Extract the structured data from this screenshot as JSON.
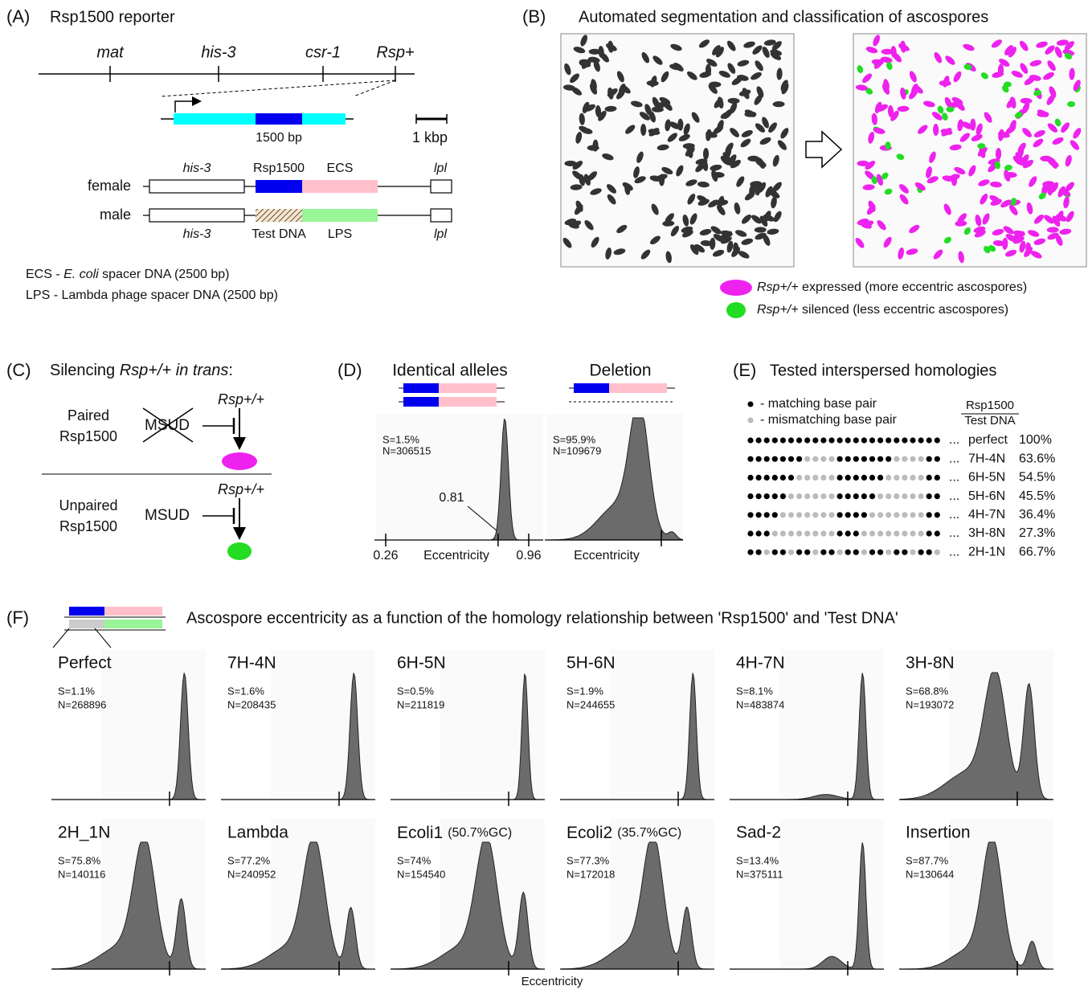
{
  "panel_a": {
    "label": "(A)",
    "title": "Rsp1500 reporter",
    "loci": [
      "mat",
      "his-3",
      "csr-1",
      "Rsp+"
    ],
    "insert_label": "1500 bp",
    "scale_label": "1 kbp",
    "top_labels": [
      "his-3",
      "Rsp1500",
      "ECS",
      "lpl"
    ],
    "rows": [
      "female",
      "male"
    ],
    "bottom_labels": [
      "his-3",
      "Test DNA",
      "LPS",
      "lpl"
    ],
    "notes": [
      [
        "ECS - ",
        "E. coli",
        " spacer DNA (2500 bp)"
      ],
      [
        "LPS - Lambda phage spacer DNA (2500 bp)"
      ]
    ]
  },
  "panel_b": {
    "label": "(B)",
    "title": "Automated segmentation and classification of ascospores",
    "legend": [
      [
        "Rsp+/+",
        " expressed (more eccentric ascospores)"
      ],
      [
        "Rsp+/+",
        " silenced (less eccentric ascospores)"
      ]
    ]
  },
  "panel_c": {
    "label": "(C)",
    "title": [
      "Silencing ",
      "Rsp+/+",
      " in trans",
      ":"
    ],
    "rows": [
      {
        "label": [
          "Paired",
          "Rsp1500"
        ],
        "msud": "MSUD",
        "gene": "Rsp+/+"
      },
      {
        "label": [
          "Unpaired",
          "Rsp1500"
        ],
        "msud": "MSUD",
        "gene": "Rsp+/+"
      }
    ]
  },
  "panel_d": {
    "label": "(D)",
    "plots": [
      {
        "title": "Identical alleles",
        "s": "S=1.5%",
        "n": "N=306515",
        "xlabel": "Eccentricity"
      },
      {
        "title": "Deletion",
        "s": "S=95.9%",
        "n": "N=109679",
        "xlabel": "Eccentricity"
      }
    ],
    "xticks": [
      0.26,
      0.96
    ],
    "marker": 0.81
  },
  "panel_e": {
    "label": "(E)",
    "title": "Tested interspersed homologies",
    "legend": [
      "- matching base pair",
      "- mismatching base pair"
    ],
    "header": [
      "Rsp1500",
      "Test DNA"
    ],
    "ellipsis": "...",
    "rows": [
      {
        "name": "perfect",
        "pct": "100%"
      },
      {
        "name": "7H-4N",
        "pct": "63.6%"
      },
      {
        "name": "6H-5N",
        "pct": "54.5%"
      },
      {
        "name": "5H-6N",
        "pct": "45.5%"
      },
      {
        "name": "4H-7N",
        "pct": "36.4%"
      },
      {
        "name": "3H-8N",
        "pct": "27.3%"
      },
      {
        "name": "2H-1N",
        "pct": "66.7%"
      }
    ]
  },
  "panel_f": {
    "label": "(F)",
    "title": "Ascospore eccentricity as a function of the homology relationship between 'Rsp1500' and 'Test DNA'",
    "xlabel": "Eccentricity",
    "plots": [
      {
        "name": "Perfect",
        "s": "S=1.1%",
        "n": "N=268896"
      },
      {
        "name": "7H-4N",
        "s": "S=1.6%",
        "n": "N=208435"
      },
      {
        "name": "6H-5N",
        "s": "S=0.5%",
        "n": "N=211819"
      },
      {
        "name": "5H-6N",
        "s": "S=1.9%",
        "n": "N=244655"
      },
      {
        "name": "4H-7N",
        "s": "S=8.1%",
        "n": "N=483874"
      },
      {
        "name": "3H-8N",
        "s": "S=68.8%",
        "n": "N=193072"
      },
      {
        "name": "2H_1N",
        "s": "S=75.8%",
        "n": "N=140116"
      },
      {
        "name": "Lambda",
        "s": "S=77.2%",
        "n": "N=240952"
      },
      {
        "name": "Ecoli1",
        "note": "(50.7%GC)",
        "s": "S=74%",
        "n": "N=154540"
      },
      {
        "name": "Ecoli2",
        "note": "(35.7%GC)",
        "s": "S=77.3%",
        "n": "N=172018"
      },
      {
        "name": "Sad-2",
        "s": "S=13.4%",
        "n": "N=375111"
      },
      {
        "name": "Insertion",
        "s": "S=87.7%",
        "n": "N=130644"
      }
    ]
  }
}
